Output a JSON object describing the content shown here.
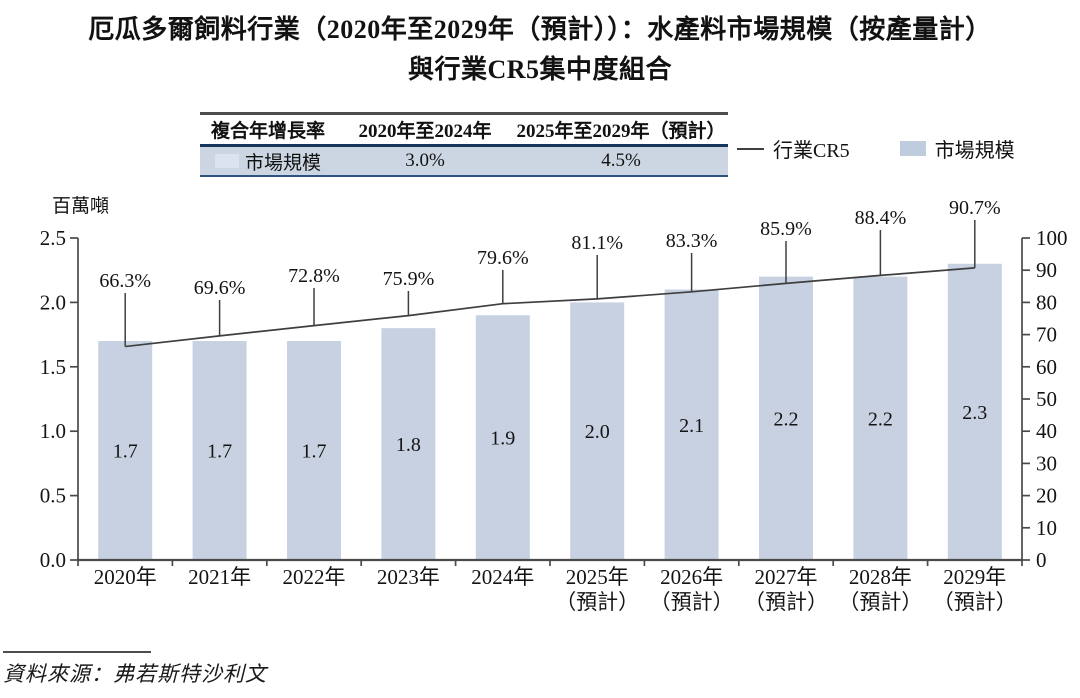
{
  "title": {
    "line1": "厄瓜多爾飼料行業（2020年至2029年（預計））：水產料市場規模（按產量計）",
    "line2": "與行業CR5集中度組合"
  },
  "cagr_table": {
    "headers": [
      "複合年增長率",
      "2020年至2024年",
      "2025年至2029年（預計）"
    ],
    "row": {
      "label": "市場規模",
      "values": [
        "3.0%",
        "4.5%"
      ]
    }
  },
  "legend": {
    "items": [
      {
        "symbol": "line",
        "label": "行業CR5"
      },
      {
        "symbol": "square",
        "label": "市場規模"
      }
    ]
  },
  "source": "資料來源：弗若斯特沙利文",
  "chart_data": {
    "type": "combo-bar-line",
    "title": "厄瓜多爾飼料行業（2020年至2029年（預計））：水產料市場規模（按產量計）與行業CR5集中度組合",
    "categories": [
      [
        "2020年"
      ],
      [
        "2021年"
      ],
      [
        "2022年"
      ],
      [
        "2023年"
      ],
      [
        "2024年"
      ],
      [
        "2025年",
        "（預計）"
      ],
      [
        "2026年",
        "（預計）"
      ],
      [
        "2027年",
        "（預計）"
      ],
      [
        "2028年",
        "（預計）"
      ],
      [
        "2029年",
        "（預計）"
      ]
    ],
    "series": [
      {
        "name": "市場規模",
        "render": "bar",
        "axis": "left",
        "values": [
          1.7,
          1.7,
          1.7,
          1.8,
          1.9,
          2.0,
          2.1,
          2.2,
          2.2,
          2.3
        ],
        "labels": [
          "1.7",
          "1.7",
          "1.7",
          "1.8",
          "1.9",
          "2.0",
          "2.1",
          "2.2",
          "2.2",
          "2.3"
        ]
      },
      {
        "name": "行業CR5",
        "render": "line",
        "axis": "right",
        "values": [
          66.3,
          69.6,
          72.8,
          75.9,
          79.6,
          81.1,
          83.3,
          85.9,
          88.4,
          90.7
        ],
        "labels": [
          "66.3%",
          "69.6%",
          "72.8%",
          "75.9%",
          "79.6%",
          "81.1%",
          "83.3%",
          "85.9%",
          "88.4%",
          "90.7%"
        ]
      }
    ],
    "left_axis": {
      "title": "百萬噸",
      "min": 0,
      "max": 2.5,
      "tick_labels": [
        "0.0",
        "0.5",
        "1.0",
        "1.5",
        "2.0",
        "2.5"
      ]
    },
    "right_axis": {
      "min": 0,
      "max": 100,
      "tick_labels": [
        "0",
        "10",
        "20",
        "30",
        "40",
        "50",
        "60",
        "70",
        "80",
        "90",
        "100"
      ]
    },
    "grid": false,
    "legend_position": "top-right",
    "colors": {
      "bar_fill": "#c7d1e2",
      "line": "#3f3f3f",
      "axis": "#4a4a4a",
      "table_row_bg": "#ccd6e3",
      "table_swatch": "#dbe3ee",
      "legend_swatch": "#bfccde"
    }
  }
}
